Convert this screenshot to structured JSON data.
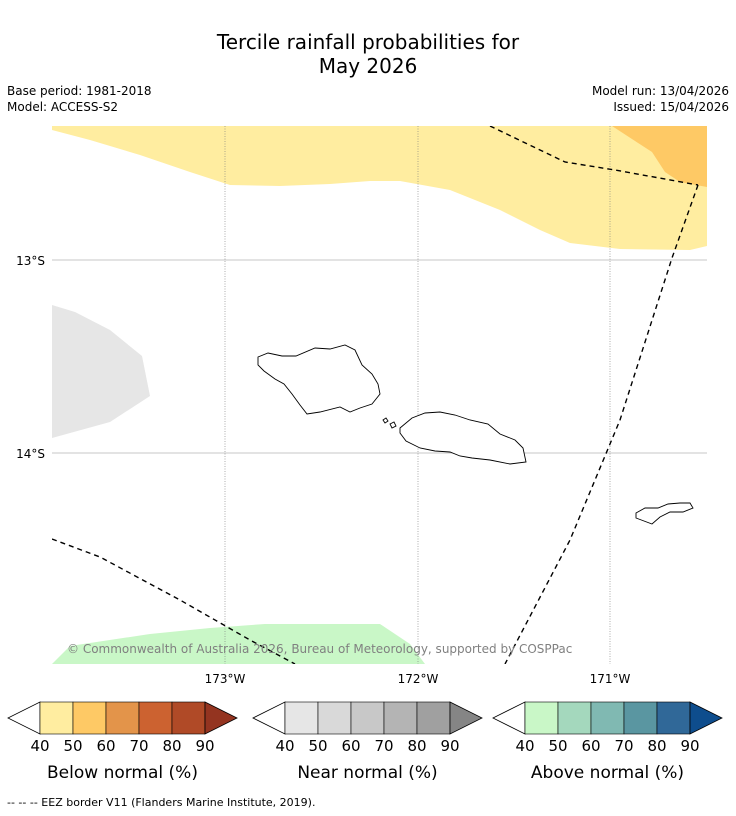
{
  "title_line1": "Tercile rainfall probabilities for",
  "title_line2": "May 2026",
  "base_period": "Base period: 1981-2018",
  "model": "Model: ACCESS-S2",
  "model_run": "Model run: 13/04/2026",
  "issued": "Issued: 15/04/2026",
  "copyright": "© Commonwealth of Australia 2026, Bureau of Meteorology, supported by COSPPac",
  "lat_labels": [
    "13°S",
    "14°S"
  ],
  "lon_labels": [
    "173°W",
    "172°W",
    "171°W"
  ],
  "colorbars": [
    {
      "label": "Below normal (%)",
      "ticks": [
        "40",
        "50",
        "60",
        "70",
        "80",
        "90"
      ],
      "colors": [
        "#ffeda0",
        "#fec965",
        "#e3944a",
        "#cc6230",
        "#b04a27",
        "#943420"
      ]
    },
    {
      "label": "Near normal (%)",
      "ticks": [
        "40",
        "50",
        "60",
        "70",
        "80",
        "90"
      ],
      "colors": [
        "#e6e6e6",
        "#d9d9d9",
        "#c8c8c8",
        "#b4b4b4",
        "#a0a0a0",
        "#858585"
      ]
    },
    {
      "label": "Above normal (%)",
      "ticks": [
        "40",
        "50",
        "60",
        "70",
        "80",
        "90"
      ],
      "colors": [
        "#c9f7c7",
        "#a4d8bd",
        "#80b9b2",
        "#5a96a1",
        "#306898",
        "#0e4d8d"
      ]
    }
  ],
  "footer": "--  --  -- EEZ border V11 (Flanders Marine Institute, 2019)."
}
